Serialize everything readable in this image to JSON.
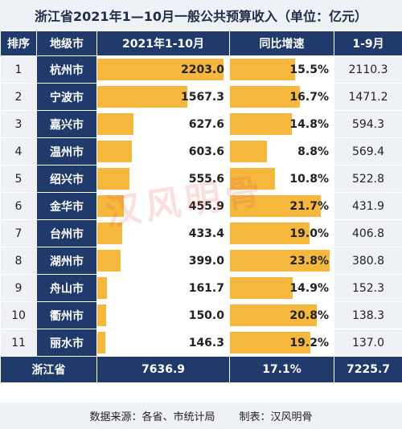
{
  "title": "浙江省2021年1—10月一般公共预算收入（单位：亿元）",
  "headers": {
    "rank": "排序",
    "city": "地级市",
    "cur": "2021年1-10月",
    "growth": "同比增速",
    "prev": "1-9月"
  },
  "chart_data": {
    "type": "table",
    "rows": [
      {
        "rank": "1",
        "city": "杭州市",
        "value": 2203.0,
        "value_label": "2203.0",
        "growth": 15.5,
        "growth_label": "15.5%",
        "prev": "2110.3"
      },
      {
        "rank": "2",
        "city": "宁波市",
        "value": 1567.3,
        "value_label": "1567.3",
        "growth": 16.7,
        "growth_label": "16.7%",
        "prev": "1471.2"
      },
      {
        "rank": "3",
        "city": "嘉兴市",
        "value": 627.6,
        "value_label": "627.6",
        "growth": 14.8,
        "growth_label": "14.8%",
        "prev": "594.3"
      },
      {
        "rank": "4",
        "city": "温州市",
        "value": 603.6,
        "value_label": "603.6",
        "growth": 8.8,
        "growth_label": "8.8%",
        "prev": "569.4"
      },
      {
        "rank": "5",
        "city": "绍兴市",
        "value": 555.6,
        "value_label": "555.6",
        "growth": 10.8,
        "growth_label": "10.8%",
        "prev": "522.8"
      },
      {
        "rank": "6",
        "city": "金华市",
        "value": 455.9,
        "value_label": "455.9",
        "growth": 21.7,
        "growth_label": "21.7%",
        "prev": "431.9"
      },
      {
        "rank": "7",
        "city": "台州市",
        "value": 433.4,
        "value_label": "433.4",
        "growth": 19.0,
        "growth_label": "19.0%",
        "prev": "406.8"
      },
      {
        "rank": "8",
        "city": "湖州市",
        "value": 399.0,
        "value_label": "399.0",
        "growth": 23.8,
        "growth_label": "23.8%",
        "prev": "380.8"
      },
      {
        "rank": "9",
        "city": "舟山市",
        "value": 161.7,
        "value_label": "161.7",
        "growth": 14.9,
        "growth_label": "14.9%",
        "prev": "152.3"
      },
      {
        "rank": "10",
        "city": "衢州市",
        "value": 150.0,
        "value_label": "150.0",
        "growth": 20.8,
        "growth_label": "20.8%",
        "prev": "138.3"
      },
      {
        "rank": "11",
        "city": "丽水市",
        "value": 146.3,
        "value_label": "146.3",
        "growth": 19.2,
        "growth_label": "19.2%",
        "prev": "137.0"
      }
    ],
    "total": {
      "label": "浙江省",
      "value": "7636.9",
      "growth": "17.1%",
      "prev": "7225.7"
    },
    "value_max": 2203.0,
    "growth_max": 23.8
  },
  "footer": {
    "source": "数据来源：各省、市统计局",
    "maker": "制表：汉风明骨"
  },
  "watermark": "汉风明骨",
  "colors": {
    "header": "#1f3a6b",
    "bar": "#f5b83d",
    "light": "#eef1f6"
  }
}
